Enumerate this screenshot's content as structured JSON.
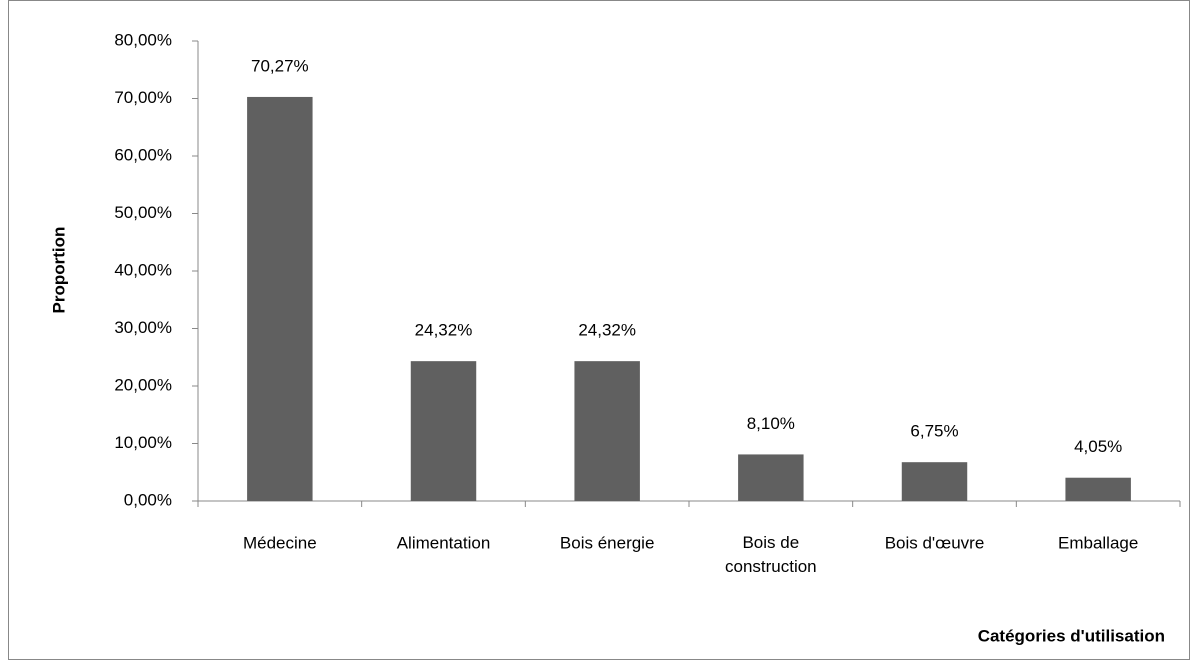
{
  "chart_data": {
    "type": "bar",
    "y_label": "Proportion",
    "x_label": "Catégories d'utilisation",
    "categories": [
      "Médecine",
      "Alimentation",
      "Bois énergie",
      "Bois de construction",
      "Bois d'œuvre",
      "Emballage"
    ],
    "values": [
      70.27,
      24.32,
      24.32,
      8.1,
      6.75,
      4.05
    ],
    "value_labels": [
      "70,27%",
      "24,32%",
      "24,32%",
      "8,10%",
      "6,75%",
      "4,05%"
    ],
    "color": "#606060",
    "ylim": [
      0,
      80
    ],
    "yticks": [
      {
        "value": 0,
        "label": "0,00%"
      },
      {
        "value": 10,
        "label": "10,00%"
      },
      {
        "value": 20,
        "label": "20,00%"
      },
      {
        "value": 30,
        "label": "30,00%"
      },
      {
        "value": 40,
        "label": "40,00%"
      },
      {
        "value": 50,
        "label": "50,00%"
      },
      {
        "value": 60,
        "label": "60,00%"
      },
      {
        "value": 70,
        "label": "70,00%"
      },
      {
        "value": 80,
        "label": "80,00%"
      }
    ],
    "grid": false
  }
}
